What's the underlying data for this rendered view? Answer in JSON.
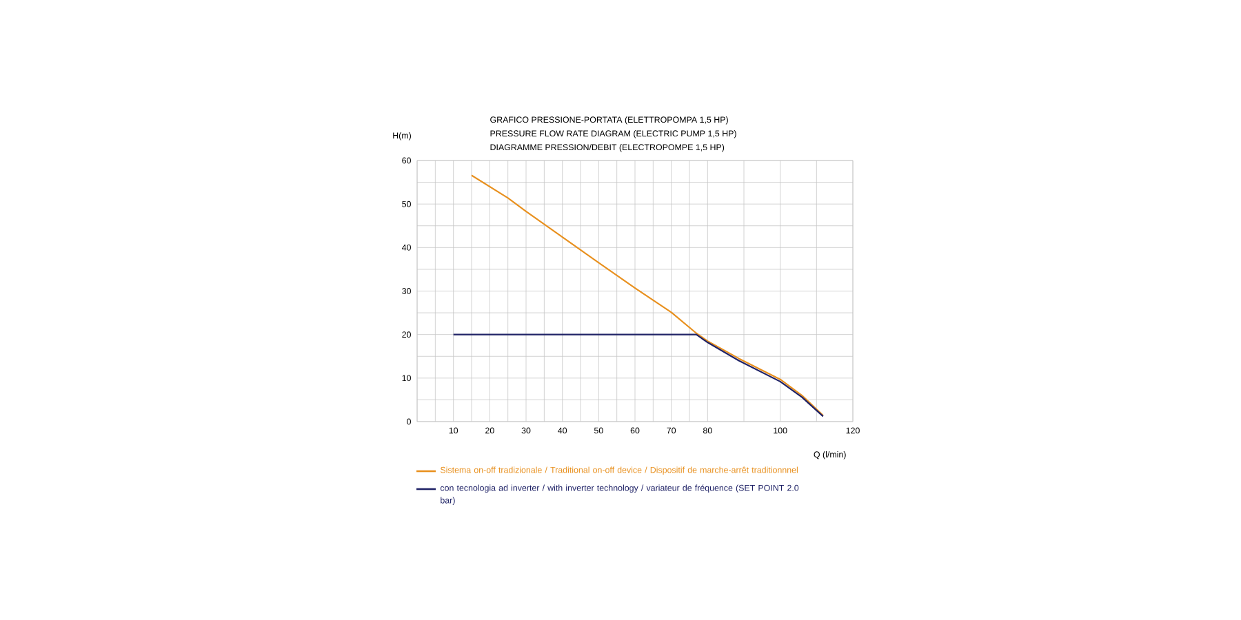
{
  "chart_data": {
    "type": "line",
    "title": "GRAFICO PRESSIONE-PORTATA (ELETTROPOMPA 1,5 HP)",
    "subtitle": "PRESSURE FLOW RATE DIAGRAM (ELECTRIC PUMP 1,5 HP)",
    "annotations": [
      "DIAGRAMME PRESSION/DEBIT (ELECTROPOMPE 1,5 HP)"
    ],
    "xlabel": "Q (l/min)",
    "ylabel": "H(m)",
    "xlim": [
      0,
      120
    ],
    "ylim": [
      0,
      60
    ],
    "xticks": [
      {
        "value": 0,
        "label": null
      },
      {
        "value": 5,
        "label": null
      },
      10,
      {
        "value": 15,
        "label": null
      },
      20,
      {
        "value": 25,
        "label": null
      },
      30,
      {
        "value": 35,
        "label": null
      },
      40,
      {
        "value": 45,
        "label": null
      },
      50,
      {
        "value": 55,
        "label": null
      },
      60,
      {
        "value": 65,
        "label": null
      },
      70,
      {
        "value": 75,
        "label": null
      },
      80,
      {
        "value": 90,
        "label": null
      },
      100,
      {
        "value": 110,
        "label": null
      },
      120
    ],
    "yticks": [
      0,
      {
        "value": 5,
        "label": null
      },
      10,
      {
        "value": 15,
        "label": null
      },
      20,
      {
        "value": 25,
        "label": null
      },
      30,
      {
        "value": 35,
        "label": null
      },
      40,
      {
        "value": 45,
        "label": null
      },
      50,
      {
        "value": 55,
        "label": null
      },
      60
    ],
    "grid": true,
    "legend": "bottom",
    "marker": "none",
    "line_style": "solid",
    "series": [
      {
        "name": "Sistema on-off tradizionale / Traditional on-off device / Dispositif de marche-arrêt traditionnnel",
        "color": "#e8901e",
        "x": [
          15,
          20,
          25,
          30,
          40,
          50,
          60,
          70,
          76.9,
          80,
          88.6,
          100,
          106,
          111.8
        ],
        "values": [
          56.6,
          54.0,
          51.4,
          48.3,
          42.4,
          36.5,
          30.7,
          25.1,
          20.3,
          18.5,
          14.5,
          9.7,
          6.0,
          1.4
        ]
      },
      {
        "name": "con tecnologia ad inverter / with inverter technology / variateur de fréquence (SET POINT 2.0 bar)",
        "color": "#1f2266",
        "x": [
          10,
          76.9,
          80,
          88.6,
          100,
          106,
          111.8
        ],
        "values": [
          20,
          20,
          18.2,
          14.0,
          9.2,
          5.6,
          1.2
        ]
      }
    ]
  }
}
